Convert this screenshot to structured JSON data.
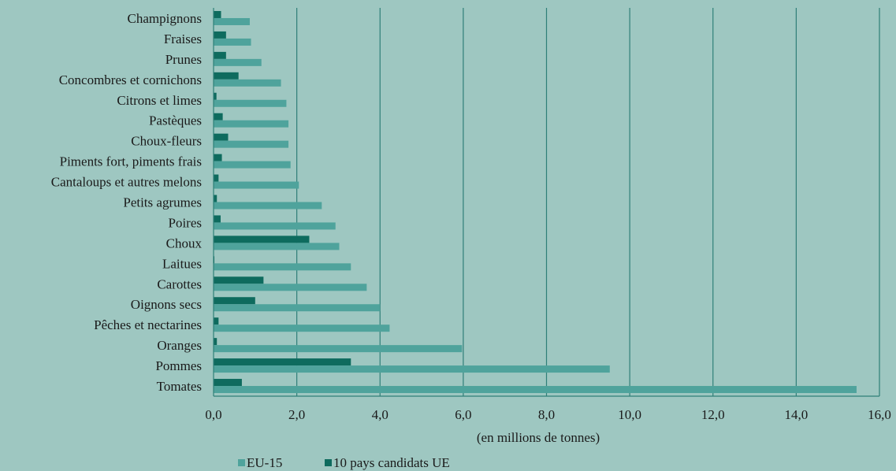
{
  "chart_data": {
    "type": "bar",
    "orientation": "horizontal",
    "title": "",
    "xlabel": "(en millions de tonnes)",
    "ylabel": "",
    "xlim": [
      0,
      16
    ],
    "x_ticks": [
      "0,0",
      "2,0",
      "4,0",
      "6,0",
      "8,0",
      "10,0",
      "12,0",
      "14,0",
      "16,0"
    ],
    "grid": "vertical",
    "legend_position": "bottom",
    "categories": [
      "Champignons",
      "Fraises",
      "Prunes",
      "Concombres et cornichons",
      "Citrons et limes",
      "Pastèques",
      "Choux-fleurs",
      "Piments fort, piments frais",
      "Cantaloups et autres melons",
      "Petits agrumes",
      "Poires",
      "Choux",
      "Laitues",
      "Carottes",
      "Oignons secs",
      "Pêches et nectarines",
      "Oranges",
      "Pommes",
      "Tomates"
    ],
    "series": [
      {
        "name": "EU-15",
        "color": "#4fa39c",
        "values": [
          0.87,
          0.9,
          1.15,
          1.62,
          1.75,
          1.8,
          1.8,
          1.85,
          2.05,
          2.6,
          2.93,
          3.02,
          3.3,
          3.68,
          4.0,
          4.23,
          5.97,
          9.52,
          15.45
        ]
      },
      {
        "name": "10 pays candidats UE",
        "color": "#0e6b5e",
        "values": [
          0.18,
          0.3,
          0.3,
          0.6,
          0.07,
          0.22,
          0.35,
          0.2,
          0.12,
          0.08,
          0.17,
          2.3,
          0.02,
          1.2,
          1.0,
          0.12,
          0.08,
          3.3,
          0.68
        ]
      }
    ]
  },
  "colors": {
    "background": "#9ec7c1",
    "grid": "#2f7f78",
    "text": "#1a1a1a"
  }
}
